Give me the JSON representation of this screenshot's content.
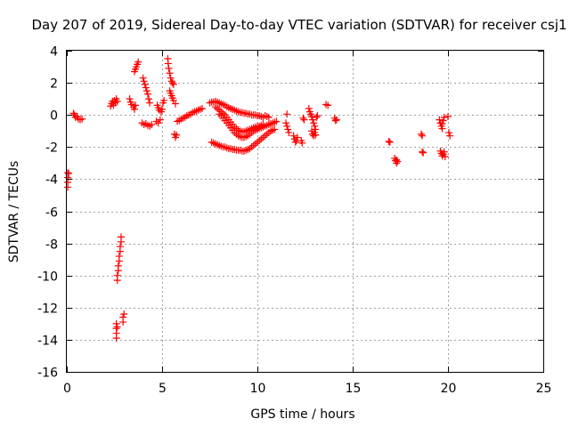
{
  "chart_data": {
    "type": "scatter",
    "title": "Day 207 of 2019, Sidereal Day-to-day VTEC variation (SDTVAR) for receiver csj1",
    "xlabel": "GPS time / hours",
    "ylabel": "SDTVAR / TECUs",
    "xlim": [
      0,
      25
    ],
    "ylim": [
      -16,
      4
    ],
    "xticks": [
      0,
      5,
      10,
      15,
      20,
      25
    ],
    "yticks": [
      -16,
      -14,
      -12,
      -10,
      -8,
      -6,
      -4,
      -2,
      0,
      2,
      4
    ],
    "grid": true,
    "marker": "+",
    "color": "#ff0000",
    "series": [
      {
        "name": "sdtvar",
        "points": [
          [
            0.05,
            -3.6
          ],
          [
            0.05,
            -3.9
          ],
          [
            0.05,
            -4.2
          ],
          [
            0.05,
            -4.5
          ],
          [
            0.1,
            -3.65
          ],
          [
            0.35,
            0.1
          ],
          [
            0.4,
            0.0
          ],
          [
            0.45,
            -0.15
          ],
          [
            0.55,
            -0.1
          ],
          [
            0.6,
            -0.25
          ],
          [
            0.7,
            -0.3
          ],
          [
            0.8,
            -0.25
          ],
          [
            2.3,
            0.55
          ],
          [
            2.35,
            0.7
          ],
          [
            2.4,
            0.85
          ],
          [
            2.45,
            0.6
          ],
          [
            2.5,
            0.9
          ],
          [
            2.55,
            0.75
          ],
          [
            2.6,
            1.0
          ],
          [
            2.65,
            0.85
          ],
          [
            2.6,
            -13.0
          ],
          [
            2.6,
            -13.3
          ],
          [
            2.6,
            -13.6
          ],
          [
            2.6,
            -13.9
          ],
          [
            2.65,
            -13.2
          ],
          [
            2.65,
            -10.3
          ],
          [
            2.65,
            -10.0
          ],
          [
            2.7,
            -9.7
          ],
          [
            2.7,
            -9.4
          ],
          [
            2.75,
            -9.1
          ],
          [
            2.75,
            -8.8
          ],
          [
            2.8,
            -8.5
          ],
          [
            2.8,
            -8.2
          ],
          [
            2.85,
            -7.9
          ],
          [
            2.85,
            -7.6
          ],
          [
            2.95,
            -12.6
          ],
          [
            2.95,
            -12.9
          ],
          [
            3.0,
            -12.4
          ],
          [
            3.3,
            1.0
          ],
          [
            3.35,
            0.8
          ],
          [
            3.4,
            0.65
          ],
          [
            3.5,
            0.5
          ],
          [
            3.55,
            0.35
          ],
          [
            3.6,
            0.6
          ],
          [
            3.55,
            2.7
          ],
          [
            3.6,
            2.85
          ],
          [
            3.65,
            3.0
          ],
          [
            3.7,
            3.15
          ],
          [
            3.75,
            3.3
          ],
          [
            4.0,
            2.3
          ],
          [
            4.05,
            2.1
          ],
          [
            4.1,
            1.9
          ],
          [
            4.15,
            1.7
          ],
          [
            4.2,
            1.5
          ],
          [
            4.25,
            1.3
          ],
          [
            4.3,
            1.0
          ],
          [
            4.35,
            0.75
          ],
          [
            3.95,
            -0.5
          ],
          [
            4.05,
            -0.6
          ],
          [
            4.15,
            -0.55
          ],
          [
            4.25,
            -0.65
          ],
          [
            4.35,
            -0.7
          ],
          [
            4.45,
            -0.6
          ],
          [
            4.75,
            0.6
          ],
          [
            4.8,
            0.45
          ],
          [
            4.85,
            0.3
          ],
          [
            4.95,
            0.2
          ],
          [
            5.0,
            0.35
          ],
          [
            5.05,
            0.75
          ],
          [
            5.1,
            0.9
          ],
          [
            4.7,
            -0.4
          ],
          [
            4.8,
            -0.5
          ],
          [
            4.9,
            -0.3
          ],
          [
            5.3,
            3.5
          ],
          [
            5.32,
            3.2
          ],
          [
            5.35,
            2.9
          ],
          [
            5.4,
            2.6
          ],
          [
            5.45,
            2.3
          ],
          [
            5.5,
            2.1
          ],
          [
            5.55,
            2.0
          ],
          [
            5.6,
            1.9
          ],
          [
            5.4,
            1.5
          ],
          [
            5.45,
            1.35
          ],
          [
            5.5,
            1.2
          ],
          [
            5.55,
            1.05
          ],
          [
            5.6,
            0.9
          ],
          [
            5.7,
            0.7
          ],
          [
            5.65,
            -1.2
          ],
          [
            5.7,
            -1.4
          ],
          [
            5.75,
            -1.25
          ],
          [
            5.8,
            -0.4
          ],
          [
            5.9,
            -0.35
          ],
          [
            6.0,
            -0.25
          ],
          [
            6.1,
            -0.2
          ],
          [
            6.2,
            -0.15
          ],
          [
            6.3,
            -0.05
          ],
          [
            6.4,
            0.0
          ],
          [
            6.5,
            0.05
          ],
          [
            6.6,
            0.15
          ],
          [
            6.7,
            0.2
          ],
          [
            6.8,
            0.25
          ],
          [
            6.9,
            0.3
          ],
          [
            7.0,
            0.35
          ],
          [
            7.1,
            0.4
          ],
          [
            7.5,
            0.75
          ],
          [
            7.6,
            0.8
          ],
          [
            7.7,
            0.8
          ],
          [
            7.8,
            0.85
          ],
          [
            7.9,
            0.8
          ],
          [
            8.0,
            0.75
          ],
          [
            8.1,
            0.7
          ],
          [
            8.2,
            0.65
          ],
          [
            8.3,
            0.6
          ],
          [
            8.4,
            0.5
          ],
          [
            8.5,
            0.45
          ],
          [
            8.6,
            0.4
          ],
          [
            8.7,
            0.35
          ],
          [
            8.8,
            0.3
          ],
          [
            8.9,
            0.25
          ],
          [
            9.0,
            0.2
          ],
          [
            9.1,
            0.15
          ],
          [
            9.2,
            0.15
          ],
          [
            9.3,
            0.1
          ],
          [
            9.4,
            0.1
          ],
          [
            9.5,
            0.05
          ],
          [
            9.6,
            0.05
          ],
          [
            9.7,
            0.0
          ],
          [
            9.8,
            0.0
          ],
          [
            9.9,
            0.0
          ],
          [
            10.0,
            -0.05
          ],
          [
            10.1,
            -0.05
          ],
          [
            10.2,
            -0.1
          ],
          [
            10.3,
            -0.15
          ],
          [
            7.8,
            0.5
          ],
          [
            7.9,
            0.4
          ],
          [
            8.0,
            0.3
          ],
          [
            8.1,
            0.2
          ],
          [
            8.2,
            0.1
          ],
          [
            8.3,
            0.0
          ],
          [
            8.4,
            -0.15
          ],
          [
            8.5,
            -0.3
          ],
          [
            8.6,
            -0.45
          ],
          [
            8.7,
            -0.6
          ],
          [
            8.8,
            -0.75
          ],
          [
            8.9,
            -0.85
          ],
          [
            9.0,
            -0.95
          ],
          [
            9.1,
            -1.0
          ],
          [
            9.2,
            -1.05
          ],
          [
            9.3,
            -1.05
          ],
          [
            9.4,
            -1.0
          ],
          [
            9.5,
            -0.95
          ],
          [
            9.6,
            -0.9
          ],
          [
            9.7,
            -0.85
          ],
          [
            9.8,
            -0.8
          ],
          [
            9.9,
            -0.75
          ],
          [
            10.0,
            -0.7
          ],
          [
            10.1,
            -0.7
          ],
          [
            10.2,
            -0.65
          ],
          [
            10.3,
            -0.6
          ],
          [
            8.0,
            0.05
          ],
          [
            8.1,
            -0.05
          ],
          [
            8.2,
            -0.2
          ],
          [
            8.3,
            -0.35
          ],
          [
            8.4,
            -0.5
          ],
          [
            8.5,
            -0.65
          ],
          [
            8.6,
            -0.8
          ],
          [
            8.7,
            -0.95
          ],
          [
            8.8,
            -1.1
          ],
          [
            8.9,
            -1.2
          ],
          [
            9.0,
            -1.3
          ],
          [
            9.1,
            -1.35
          ],
          [
            9.2,
            -1.4
          ],
          [
            9.3,
            -1.4
          ],
          [
            9.4,
            -1.35
          ],
          [
            9.5,
            -1.3
          ],
          [
            9.6,
            -1.2
          ],
          [
            9.7,
            -1.1
          ],
          [
            9.8,
            -1.0
          ],
          [
            9.9,
            -0.95
          ],
          [
            10.0,
            -0.9
          ],
          [
            10.1,
            -0.85
          ],
          [
            10.2,
            -0.8
          ],
          [
            10.3,
            -0.75
          ],
          [
            10.4,
            -0.7
          ],
          [
            10.5,
            -0.65
          ],
          [
            10.6,
            -0.6
          ],
          [
            10.7,
            -0.55
          ],
          [
            10.8,
            -0.5
          ],
          [
            10.9,
            -0.45
          ],
          [
            11.0,
            -0.4
          ],
          [
            7.6,
            -1.7
          ],
          [
            7.7,
            -1.75
          ],
          [
            7.8,
            -1.8
          ],
          [
            7.9,
            -1.85
          ],
          [
            8.0,
            -1.9
          ],
          [
            8.1,
            -1.95
          ],
          [
            8.2,
            -2.0
          ],
          [
            8.3,
            -2.0
          ],
          [
            8.4,
            -2.05
          ],
          [
            8.5,
            -2.1
          ],
          [
            8.6,
            -2.1
          ],
          [
            8.7,
            -2.15
          ],
          [
            8.8,
            -2.15
          ],
          [
            8.9,
            -2.2
          ],
          [
            9.0,
            -2.2
          ],
          [
            9.1,
            -2.2
          ],
          [
            9.2,
            -2.25
          ],
          [
            9.3,
            -2.25
          ],
          [
            9.4,
            -2.2
          ],
          [
            9.5,
            -2.15
          ],
          [
            9.6,
            -2.1
          ],
          [
            9.7,
            -2.0
          ],
          [
            9.8,
            -1.9
          ],
          [
            9.9,
            -1.8
          ],
          [
            10.0,
            -1.7
          ],
          [
            10.1,
            -1.6
          ],
          [
            10.2,
            -1.5
          ],
          [
            10.3,
            -1.4
          ],
          [
            10.4,
            -1.3
          ],
          [
            10.5,
            -1.2
          ],
          [
            10.6,
            -1.1
          ],
          [
            10.7,
            -1.0
          ],
          [
            10.8,
            -0.95
          ],
          [
            10.9,
            -0.9
          ],
          [
            10.4,
            -0.05
          ],
          [
            10.5,
            -0.1
          ],
          [
            10.6,
            -0.15
          ],
          [
            11.5,
            -0.5
          ],
          [
            11.55,
            -0.7
          ],
          [
            11.6,
            -0.9
          ],
          [
            11.65,
            -1.1
          ],
          [
            11.55,
            0.05
          ],
          [
            11.9,
            -1.3
          ],
          [
            11.95,
            -1.5
          ],
          [
            12.0,
            -1.7
          ],
          [
            12.05,
            -1.6
          ],
          [
            12.1,
            -1.4
          ],
          [
            12.3,
            -1.6
          ],
          [
            12.35,
            -1.75
          ],
          [
            12.4,
            -0.2
          ],
          [
            12.45,
            -0.3
          ],
          [
            12.7,
            0.4
          ],
          [
            12.75,
            0.2
          ],
          [
            12.8,
            0.05
          ],
          [
            12.85,
            -0.1
          ],
          [
            12.9,
            -0.3
          ],
          [
            12.95,
            -0.5
          ],
          [
            13.0,
            -0.7
          ],
          [
            13.05,
            -0.9
          ],
          [
            13.0,
            -1.1
          ],
          [
            12.95,
            -1.3
          ],
          [
            12.9,
            -1.2
          ],
          [
            12.85,
            -1.0
          ],
          [
            13.05,
            -1.25
          ],
          [
            13.1,
            -0.15
          ],
          [
            13.15,
            -0.05
          ],
          [
            13.6,
            0.65
          ],
          [
            13.7,
            0.6
          ],
          [
            14.05,
            -0.2
          ],
          [
            14.1,
            -0.35
          ],
          [
            14.15,
            -0.3
          ],
          [
            16.9,
            -1.65
          ],
          [
            16.95,
            -1.7
          ],
          [
            17.2,
            -2.7
          ],
          [
            17.25,
            -2.85
          ],
          [
            17.3,
            -3.0
          ],
          [
            17.35,
            -2.9
          ],
          [
            17.3,
            -2.8
          ],
          [
            18.6,
            -1.2
          ],
          [
            18.65,
            -1.3
          ],
          [
            18.65,
            -2.3
          ],
          [
            18.7,
            -2.35
          ],
          [
            19.55,
            -0.3
          ],
          [
            19.6,
            -0.5
          ],
          [
            19.65,
            -0.7
          ],
          [
            19.7,
            -0.55
          ],
          [
            19.75,
            -0.35
          ],
          [
            19.8,
            -0.15
          ],
          [
            19.7,
            -0.85
          ],
          [
            19.6,
            -2.25
          ],
          [
            19.65,
            -2.4
          ],
          [
            19.7,
            -2.55
          ],
          [
            19.75,
            -2.45
          ],
          [
            19.8,
            -2.3
          ],
          [
            19.85,
            -2.6
          ],
          [
            20.0,
            -0.1
          ],
          [
            20.05,
            -1.1
          ],
          [
            20.1,
            -1.3
          ]
        ]
      }
    ]
  }
}
